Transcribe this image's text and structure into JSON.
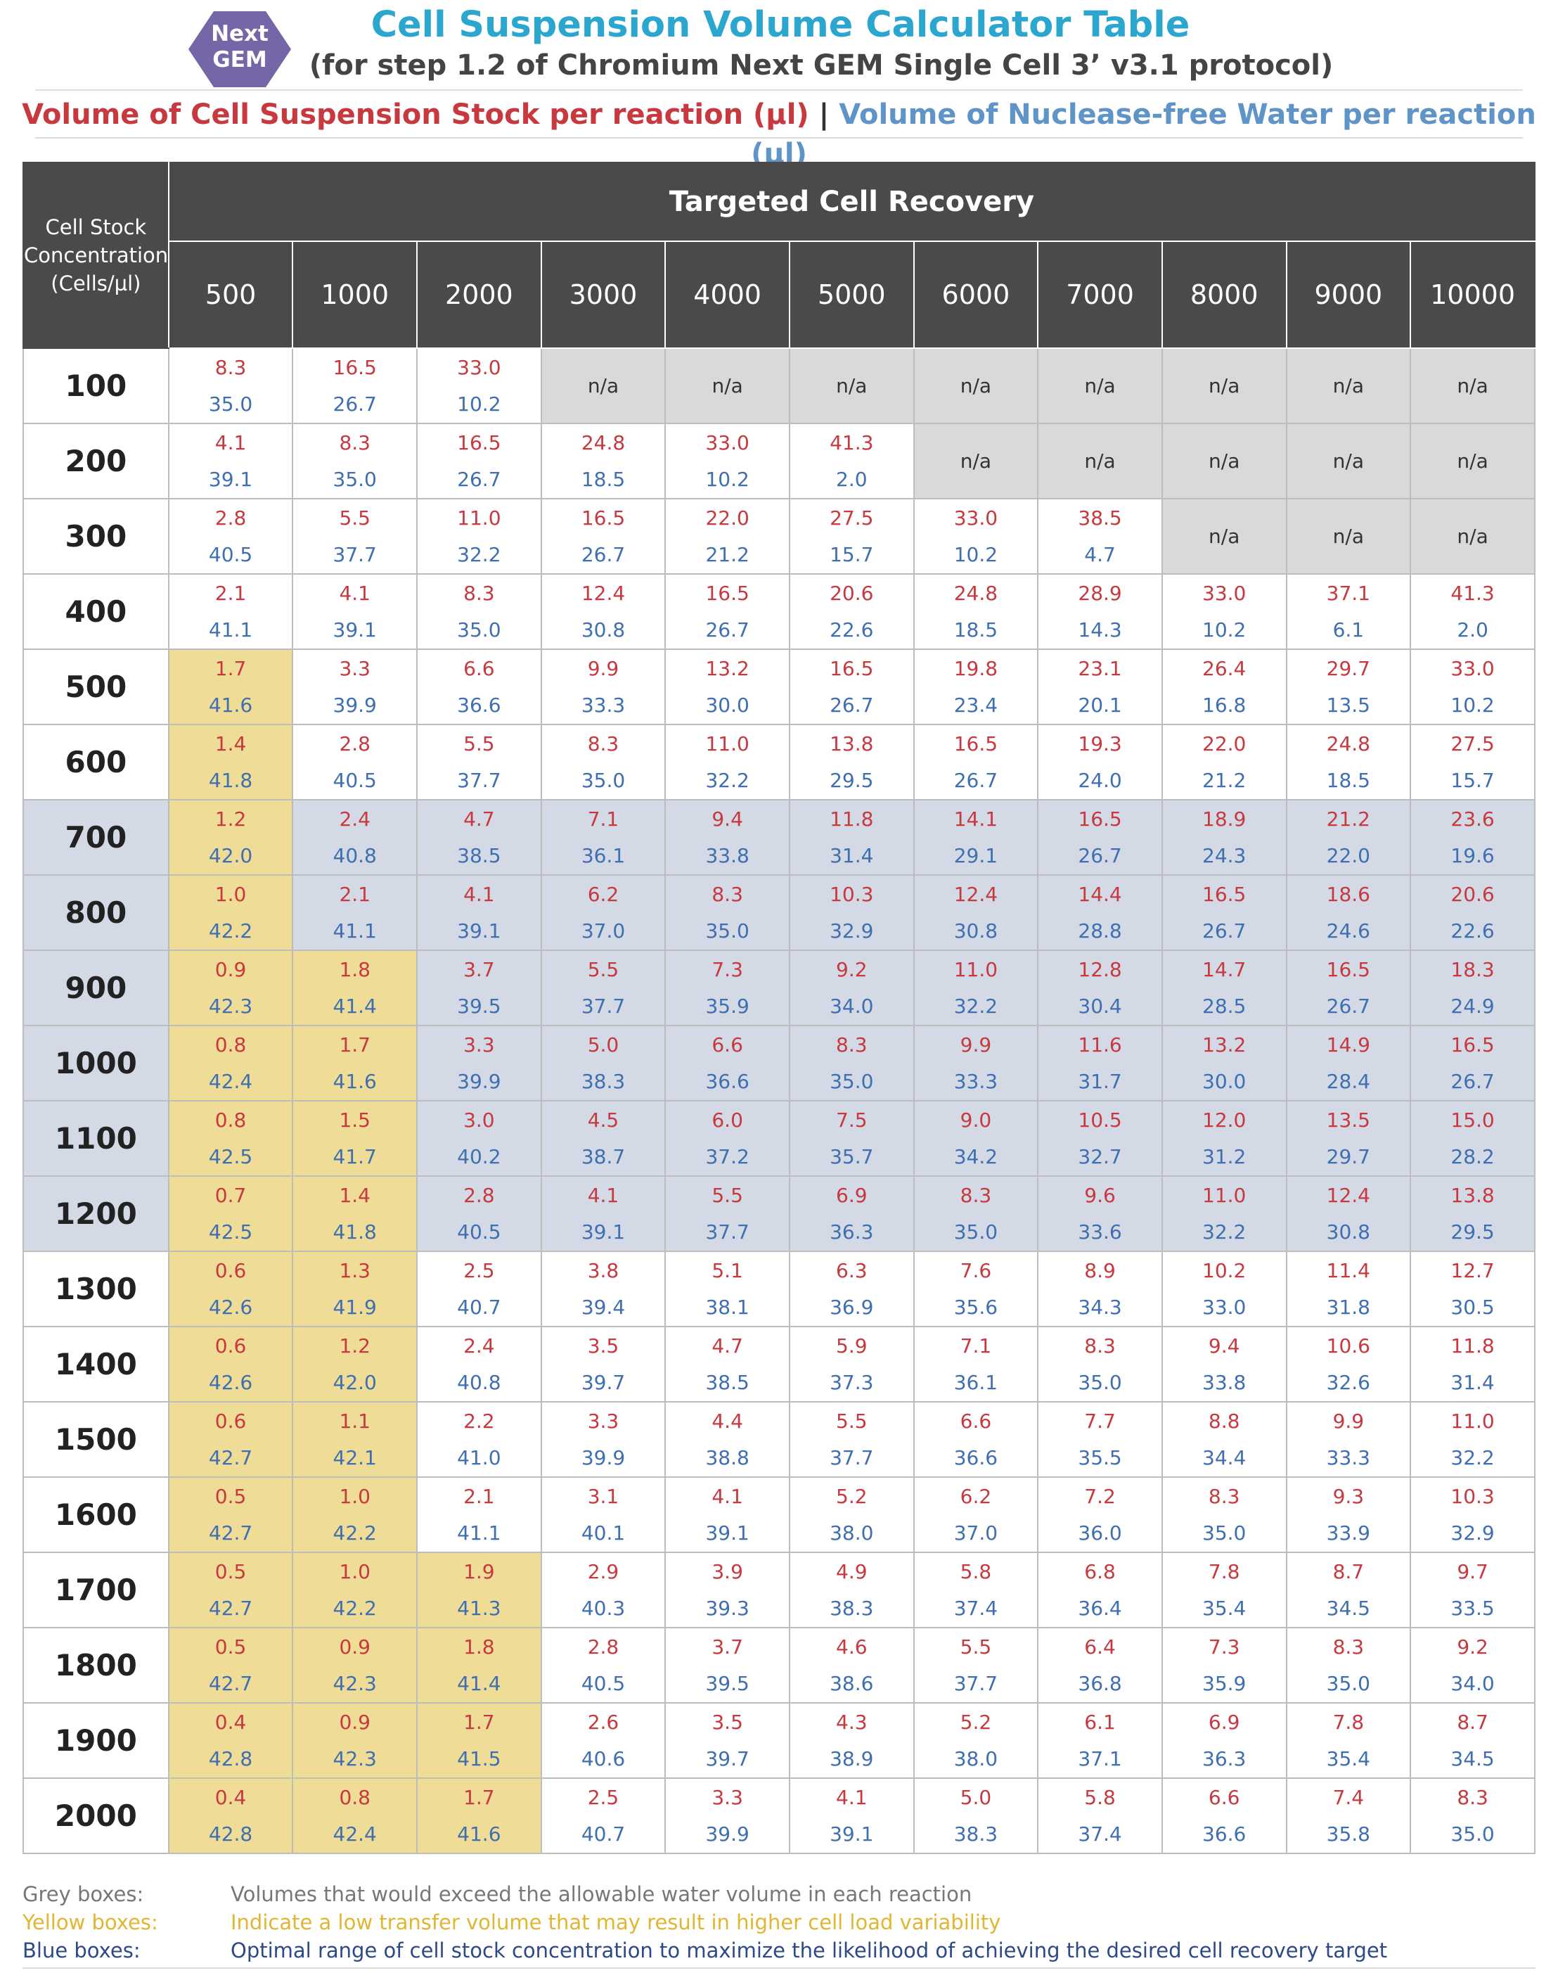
{
  "header": {
    "logo_line1": "Next",
    "logo_line2": "GEM",
    "title": "Cell Suspension Volume Calculator Table",
    "subtitle": "(for step 1.2 of Chromium Next GEM Single Cell 3’ v3.1 protocol)",
    "legend_red": "Volume of Cell Suspension Stock per reaction (µl)",
    "legend_sep": " | ",
    "legend_blue": "Volume of Nuclease-free Water per reaction (µl)",
    "logo_color": "#7466a7",
    "title_color": "#2aa6cf",
    "stock_color": "#c8393f",
    "water_color": "#5f94c8"
  },
  "table": {
    "corner_line1": "Cell Stock",
    "corner_line2": "Concentration",
    "corner_line3": "(Cells/µl)",
    "group_header": "Targeted Cell Recovery",
    "columns": [
      "500",
      "1000",
      "2000",
      "3000",
      "4000",
      "5000",
      "6000",
      "7000",
      "8000",
      "9000",
      "10000"
    ],
    "na_text": "n/a",
    "rows": [
      {
        "label": "100",
        "blue": false,
        "cells": [
          [
            "8.3",
            "35.0",
            "y0"
          ],
          [
            "16.5",
            "26.7",
            ""
          ],
          [
            "33.0",
            "10.2",
            ""
          ],
          null,
          null,
          null,
          null,
          null,
          null,
          null,
          null
        ]
      },
      {
        "label": "200",
        "blue": false,
        "cells": [
          [
            "4.1",
            "39.1",
            ""
          ],
          [
            "8.3",
            "35.0",
            ""
          ],
          [
            "16.5",
            "26.7",
            ""
          ],
          [
            "24.8",
            "18.5",
            ""
          ],
          [
            "33.0",
            "10.2",
            ""
          ],
          [
            "41.3",
            "2.0",
            ""
          ],
          null,
          null,
          null,
          null,
          null
        ]
      },
      {
        "label": "300",
        "blue": false,
        "cells": [
          [
            "2.8",
            "40.5",
            ""
          ],
          [
            "5.5",
            "37.7",
            ""
          ],
          [
            "11.0",
            "32.2",
            ""
          ],
          [
            "16.5",
            "26.7",
            ""
          ],
          [
            "22.0",
            "21.2",
            ""
          ],
          [
            "27.5",
            "15.7",
            ""
          ],
          [
            "33.0",
            "10.2",
            ""
          ],
          [
            "38.5",
            "4.7",
            ""
          ],
          null,
          null,
          null
        ]
      },
      {
        "label": "400",
        "blue": false,
        "cells": [
          [
            "2.1",
            "41.1",
            ""
          ],
          [
            "4.1",
            "39.1",
            ""
          ],
          [
            "8.3",
            "35.0",
            ""
          ],
          [
            "12.4",
            "30.8",
            ""
          ],
          [
            "16.5",
            "26.7",
            ""
          ],
          [
            "20.6",
            "22.6",
            ""
          ],
          [
            "24.8",
            "18.5",
            ""
          ],
          [
            "28.9",
            "14.3",
            ""
          ],
          [
            "33.0",
            "10.2",
            ""
          ],
          [
            "37.1",
            "6.1",
            ""
          ],
          [
            "41.3",
            "2.0",
            ""
          ]
        ]
      },
      {
        "label": "500",
        "blue": false,
        "cells": [
          [
            "1.7",
            "41.6",
            "y"
          ],
          [
            "3.3",
            "39.9",
            ""
          ],
          [
            "6.6",
            "36.6",
            ""
          ],
          [
            "9.9",
            "33.3",
            ""
          ],
          [
            "13.2",
            "30.0",
            ""
          ],
          [
            "16.5",
            "26.7",
            ""
          ],
          [
            "19.8",
            "23.4",
            ""
          ],
          [
            "23.1",
            "20.1",
            ""
          ],
          [
            "26.4",
            "16.8",
            ""
          ],
          [
            "29.7",
            "13.5",
            ""
          ],
          [
            "33.0",
            "10.2",
            ""
          ]
        ]
      },
      {
        "label": "600",
        "blue": false,
        "cells": [
          [
            "1.4",
            "41.8",
            "y"
          ],
          [
            "2.8",
            "40.5",
            ""
          ],
          [
            "5.5",
            "37.7",
            ""
          ],
          [
            "8.3",
            "35.0",
            ""
          ],
          [
            "11.0",
            "32.2",
            ""
          ],
          [
            "13.8",
            "29.5",
            ""
          ],
          [
            "16.5",
            "26.7",
            ""
          ],
          [
            "19.3",
            "24.0",
            ""
          ],
          [
            "22.0",
            "21.2",
            ""
          ],
          [
            "24.8",
            "18.5",
            ""
          ],
          [
            "27.5",
            "15.7",
            ""
          ]
        ]
      },
      {
        "label": "700",
        "blue": true,
        "cells": [
          [
            "1.2",
            "42.0",
            "y"
          ],
          [
            "2.4",
            "40.8",
            ""
          ],
          [
            "4.7",
            "38.5",
            ""
          ],
          [
            "7.1",
            "36.1",
            ""
          ],
          [
            "9.4",
            "33.8",
            ""
          ],
          [
            "11.8",
            "31.4",
            ""
          ],
          [
            "14.1",
            "29.1",
            ""
          ],
          [
            "16.5",
            "26.7",
            ""
          ],
          [
            "18.9",
            "24.3",
            ""
          ],
          [
            "21.2",
            "22.0",
            ""
          ],
          [
            "23.6",
            "19.6",
            ""
          ]
        ]
      },
      {
        "label": "800",
        "blue": true,
        "cells": [
          [
            "1.0",
            "42.2",
            "y"
          ],
          [
            "2.1",
            "41.1",
            ""
          ],
          [
            "4.1",
            "39.1",
            ""
          ],
          [
            "6.2",
            "37.0",
            ""
          ],
          [
            "8.3",
            "35.0",
            ""
          ],
          [
            "10.3",
            "32.9",
            ""
          ],
          [
            "12.4",
            "30.8",
            ""
          ],
          [
            "14.4",
            "28.8",
            ""
          ],
          [
            "16.5",
            "26.7",
            ""
          ],
          [
            "18.6",
            "24.6",
            ""
          ],
          [
            "20.6",
            "22.6",
            ""
          ]
        ]
      },
      {
        "label": "900",
        "blue": true,
        "cells": [
          [
            "0.9",
            "42.3",
            "y"
          ],
          [
            "1.8",
            "41.4",
            "y"
          ],
          [
            "3.7",
            "39.5",
            ""
          ],
          [
            "5.5",
            "37.7",
            ""
          ],
          [
            "7.3",
            "35.9",
            ""
          ],
          [
            "9.2",
            "34.0",
            ""
          ],
          [
            "11.0",
            "32.2",
            ""
          ],
          [
            "12.8",
            "30.4",
            ""
          ],
          [
            "14.7",
            "28.5",
            ""
          ],
          [
            "16.5",
            "26.7",
            ""
          ],
          [
            "18.3",
            "24.9",
            ""
          ]
        ]
      },
      {
        "label": "1000",
        "blue": true,
        "cells": [
          [
            "0.8",
            "42.4",
            "y"
          ],
          [
            "1.7",
            "41.6",
            "y"
          ],
          [
            "3.3",
            "39.9",
            ""
          ],
          [
            "5.0",
            "38.3",
            ""
          ],
          [
            "6.6",
            "36.6",
            ""
          ],
          [
            "8.3",
            "35.0",
            ""
          ],
          [
            "9.9",
            "33.3",
            ""
          ],
          [
            "11.6",
            "31.7",
            ""
          ],
          [
            "13.2",
            "30.0",
            ""
          ],
          [
            "14.9",
            "28.4",
            ""
          ],
          [
            "16.5",
            "26.7",
            ""
          ]
        ]
      },
      {
        "label": "1100",
        "blue": true,
        "cells": [
          [
            "0.8",
            "42.5",
            "y"
          ],
          [
            "1.5",
            "41.7",
            "y"
          ],
          [
            "3.0",
            "40.2",
            ""
          ],
          [
            "4.5",
            "38.7",
            ""
          ],
          [
            "6.0",
            "37.2",
            ""
          ],
          [
            "7.5",
            "35.7",
            ""
          ],
          [
            "9.0",
            "34.2",
            ""
          ],
          [
            "10.5",
            "32.7",
            ""
          ],
          [
            "12.0",
            "31.2",
            ""
          ],
          [
            "13.5",
            "29.7",
            ""
          ],
          [
            "15.0",
            "28.2",
            ""
          ]
        ]
      },
      {
        "label": "1200",
        "blue": true,
        "cells": [
          [
            "0.7",
            "42.5",
            "y"
          ],
          [
            "1.4",
            "41.8",
            "y"
          ],
          [
            "2.8",
            "40.5",
            ""
          ],
          [
            "4.1",
            "39.1",
            ""
          ],
          [
            "5.5",
            "37.7",
            ""
          ],
          [
            "6.9",
            "36.3",
            ""
          ],
          [
            "8.3",
            "35.0",
            ""
          ],
          [
            "9.6",
            "33.6",
            ""
          ],
          [
            "11.0",
            "32.2",
            ""
          ],
          [
            "12.4",
            "30.8",
            ""
          ],
          [
            "13.8",
            "29.5",
            ""
          ]
        ]
      },
      {
        "label": "1300",
        "blue": false,
        "cells": [
          [
            "0.6",
            "42.6",
            "y"
          ],
          [
            "1.3",
            "41.9",
            "y"
          ],
          [
            "2.5",
            "40.7",
            ""
          ],
          [
            "3.8",
            "39.4",
            ""
          ],
          [
            "5.1",
            "38.1",
            ""
          ],
          [
            "6.3",
            "36.9",
            ""
          ],
          [
            "7.6",
            "35.6",
            ""
          ],
          [
            "8.9",
            "34.3",
            ""
          ],
          [
            "10.2",
            "33.0",
            ""
          ],
          [
            "11.4",
            "31.8",
            ""
          ],
          [
            "12.7",
            "30.5",
            ""
          ]
        ]
      },
      {
        "label": "1400",
        "blue": false,
        "cells": [
          [
            "0.6",
            "42.6",
            "y"
          ],
          [
            "1.2",
            "42.0",
            "y"
          ],
          [
            "2.4",
            "40.8",
            ""
          ],
          [
            "3.5",
            "39.7",
            ""
          ],
          [
            "4.7",
            "38.5",
            ""
          ],
          [
            "5.9",
            "37.3",
            ""
          ],
          [
            "7.1",
            "36.1",
            ""
          ],
          [
            "8.3",
            "35.0",
            ""
          ],
          [
            "9.4",
            "33.8",
            ""
          ],
          [
            "10.6",
            "32.6",
            ""
          ],
          [
            "11.8",
            "31.4",
            ""
          ]
        ]
      },
      {
        "label": "1500",
        "blue": false,
        "cells": [
          [
            "0.6",
            "42.7",
            "y"
          ],
          [
            "1.1",
            "42.1",
            "y"
          ],
          [
            "2.2",
            "41.0",
            ""
          ],
          [
            "3.3",
            "39.9",
            ""
          ],
          [
            "4.4",
            "38.8",
            ""
          ],
          [
            "5.5",
            "37.7",
            ""
          ],
          [
            "6.6",
            "36.6",
            ""
          ],
          [
            "7.7",
            "35.5",
            ""
          ],
          [
            "8.8",
            "34.4",
            ""
          ],
          [
            "9.9",
            "33.3",
            ""
          ],
          [
            "11.0",
            "32.2",
            ""
          ]
        ]
      },
      {
        "label": "1600",
        "blue": false,
        "cells": [
          [
            "0.5",
            "42.7",
            "y"
          ],
          [
            "1.0",
            "42.2",
            "y"
          ],
          [
            "2.1",
            "41.1",
            ""
          ],
          [
            "3.1",
            "40.1",
            ""
          ],
          [
            "4.1",
            "39.1",
            ""
          ],
          [
            "5.2",
            "38.0",
            ""
          ],
          [
            "6.2",
            "37.0",
            ""
          ],
          [
            "7.2",
            "36.0",
            ""
          ],
          [
            "8.3",
            "35.0",
            ""
          ],
          [
            "9.3",
            "33.9",
            ""
          ],
          [
            "10.3",
            "32.9",
            ""
          ]
        ]
      },
      {
        "label": "1700",
        "blue": false,
        "cells": [
          [
            "0.5",
            "42.7",
            "y"
          ],
          [
            "1.0",
            "42.2",
            "y"
          ],
          [
            "1.9",
            "41.3",
            "y"
          ],
          [
            "2.9",
            "40.3",
            ""
          ],
          [
            "3.9",
            "39.3",
            ""
          ],
          [
            "4.9",
            "38.3",
            ""
          ],
          [
            "5.8",
            "37.4",
            ""
          ],
          [
            "6.8",
            "36.4",
            ""
          ],
          [
            "7.8",
            "35.4",
            ""
          ],
          [
            "8.7",
            "34.5",
            ""
          ],
          [
            "9.7",
            "33.5",
            ""
          ]
        ]
      },
      {
        "label": "1800",
        "blue": false,
        "cells": [
          [
            "0.5",
            "42.7",
            "y"
          ],
          [
            "0.9",
            "42.3",
            "y"
          ],
          [
            "1.8",
            "41.4",
            "y"
          ],
          [
            "2.8",
            "40.5",
            ""
          ],
          [
            "3.7",
            "39.5",
            ""
          ],
          [
            "4.6",
            "38.6",
            ""
          ],
          [
            "5.5",
            "37.7",
            ""
          ],
          [
            "6.4",
            "36.8",
            ""
          ],
          [
            "7.3",
            "35.9",
            ""
          ],
          [
            "8.3",
            "35.0",
            ""
          ],
          [
            "9.2",
            "34.0",
            ""
          ]
        ]
      },
      {
        "label": "1900",
        "blue": false,
        "cells": [
          [
            "0.4",
            "42.8",
            "y"
          ],
          [
            "0.9",
            "42.3",
            "y"
          ],
          [
            "1.7",
            "41.5",
            "y"
          ],
          [
            "2.6",
            "40.6",
            ""
          ],
          [
            "3.5",
            "39.7",
            ""
          ],
          [
            "4.3",
            "38.9",
            ""
          ],
          [
            "5.2",
            "38.0",
            ""
          ],
          [
            "6.1",
            "37.1",
            ""
          ],
          [
            "6.9",
            "36.3",
            ""
          ],
          [
            "7.8",
            "35.4",
            ""
          ],
          [
            "8.7",
            "34.5",
            ""
          ]
        ]
      },
      {
        "label": "2000",
        "blue": false,
        "cells": [
          [
            "0.4",
            "42.8",
            "y"
          ],
          [
            "0.8",
            "42.4",
            "y"
          ],
          [
            "1.7",
            "41.6",
            "y"
          ],
          [
            "2.5",
            "40.7",
            ""
          ],
          [
            "3.3",
            "39.9",
            ""
          ],
          [
            "4.1",
            "39.1",
            ""
          ],
          [
            "5.0",
            "38.3",
            ""
          ],
          [
            "5.8",
            "37.4",
            ""
          ],
          [
            "6.6",
            "36.6",
            ""
          ],
          [
            "7.4",
            "35.8",
            ""
          ],
          [
            "8.3",
            "35.0",
            ""
          ]
        ]
      }
    ]
  },
  "footnotes": [
    {
      "label": "Grey boxes:",
      "text": "Volumes that would exceed the allowable water volume in each reaction",
      "color": "#777777"
    },
    {
      "label": "Yellow boxes:",
      "text": "Indicate a low transfer volume that may result in higher cell load variability",
      "color": "#e0b632"
    },
    {
      "label": "Blue boxes:",
      "text": "Optimal range of cell stock concentration to maximize the likelihood of achieving the desired cell recovery target",
      "color": "#2d4a86"
    }
  ]
}
